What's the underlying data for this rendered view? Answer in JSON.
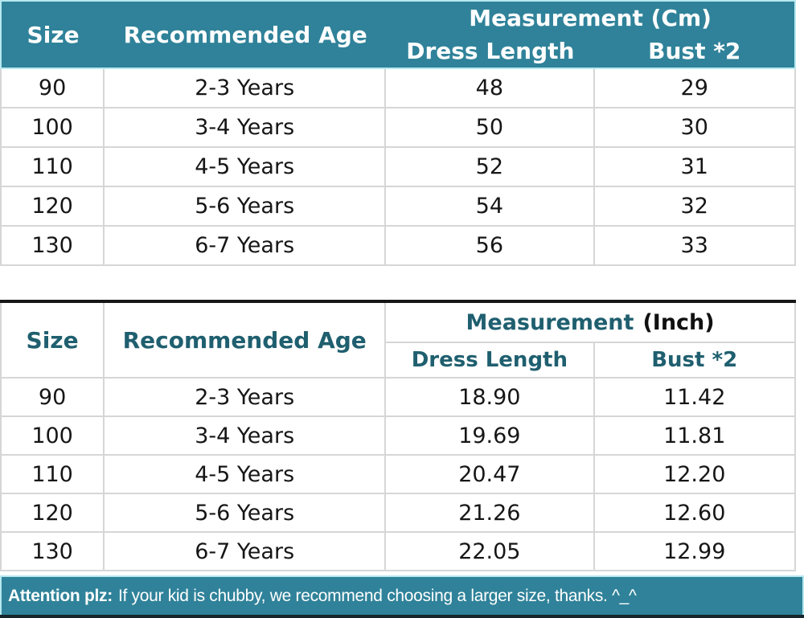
{
  "colors": {
    "header-teal": "#2F8299",
    "dark-teal": "#1F5F6F",
    "light-cyan": "#B5E8EF",
    "grid-gray": "#D6D6D6",
    "separator-black": "#161616",
    "footer-bottom": "#16262B"
  },
  "chart_data": [
    {
      "type": "table",
      "unit": "Cm",
      "group_header": "Measurement (Cm)",
      "columns": [
        "Size",
        "Recommended Age",
        "Dress Length",
        "Bust *2"
      ],
      "rows": [
        [
          "90",
          "2-3 Years",
          "48",
          "29"
        ],
        [
          "100",
          "3-4 Years",
          "50",
          "30"
        ],
        [
          "110",
          "4-5 Years",
          "52",
          "31"
        ],
        [
          "120",
          "5-6 Years",
          "54",
          "32"
        ],
        [
          "130",
          "6-7 Years",
          "56",
          "33"
        ]
      ]
    },
    {
      "type": "table",
      "unit": "Inch",
      "group_header_main": "Measurement",
      "group_header_unit": "(Inch)",
      "columns": [
        "Size",
        "Recommended Age",
        "Dress Length",
        "Bust *2"
      ],
      "rows": [
        [
          "90",
          "2-3 Years",
          "18.90",
          "11.42"
        ],
        [
          "100",
          "3-4 Years",
          "19.69",
          "11.81"
        ],
        [
          "110",
          "4-5 Years",
          "20.47",
          "12.20"
        ],
        [
          "120",
          "5-6 Years",
          "21.26",
          "12.60"
        ],
        [
          "130",
          "6-7 Years",
          "22.05",
          "12.99"
        ]
      ]
    }
  ],
  "footer": {
    "label": "Attention plz:",
    "text": "If your kid is chubby, we recommend choosing a larger size, thanks. ^_^"
  }
}
